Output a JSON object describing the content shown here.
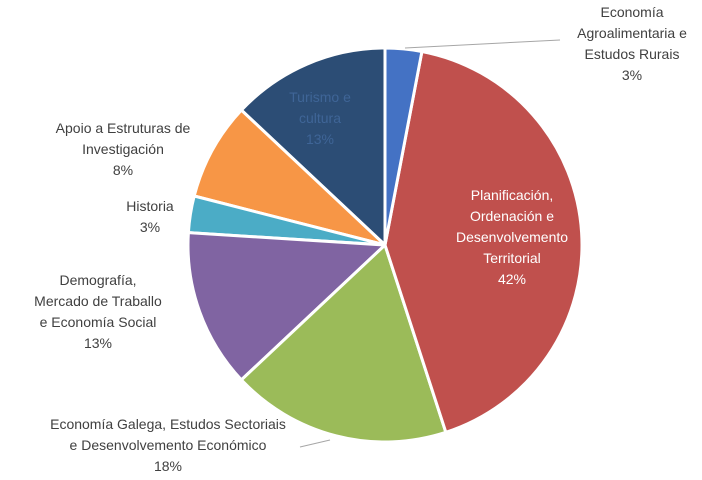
{
  "chart_data": {
    "type": "pie",
    "categories": [
      "Economía\nAgroalimentaria e\nEstudos Rurais",
      "Planificación,\nOrdenación e\nDesenvolvemento\nTerritorial",
      "Economía Galega, Estudos Sectoriais\ne Desenvolvemento Económico",
      "Demografía,\nMercado de Traballo\ne Economía Social",
      "Historia",
      "Apoio a Estruturas de\nInvestigación",
      "Turismo e\ncultura"
    ],
    "values": [
      3,
      42,
      18,
      13,
      3,
      8,
      13
    ],
    "value_labels": [
      "3%",
      "42%",
      "18%",
      "13%",
      "3%",
      "8%",
      "13%"
    ],
    "colors": [
      "#4472c4",
      "#c0504d",
      "#9bbb59",
      "#8064a2",
      "#4bacc6",
      "#f79646",
      "#2c4d75"
    ]
  }
}
